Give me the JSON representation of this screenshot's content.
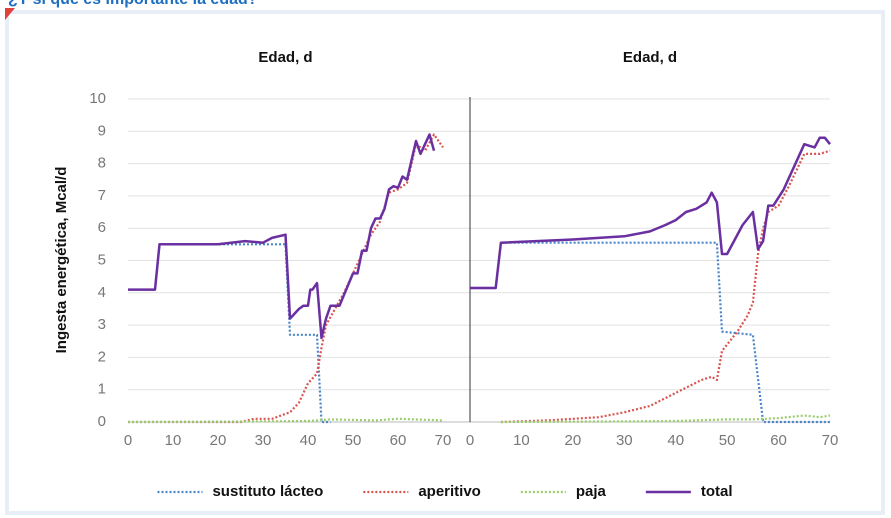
{
  "title": "¿Y si que es importante la edad?",
  "chart_data": [
    {
      "type": "line",
      "title": "Edad, d",
      "y_label": "Ingesta energética, Mcal/d",
      "xlim": [
        0,
        70
      ],
      "xticks": [
        0,
        10,
        20,
        30,
        40,
        50,
        60,
        70
      ],
      "ylim": [
        0,
        10
      ],
      "yticks": [
        0,
        1,
        2,
        3,
        4,
        5,
        6,
        7,
        8,
        9,
        10
      ],
      "grid": true,
      "legend": "bottom",
      "series": [
        {
          "name": "sustituto lácteo",
          "color": "#4a86c8",
          "style": "dotted",
          "x": [
            0,
            6,
            7,
            35,
            36,
            42,
            43,
            45
          ],
          "values": [
            4.1,
            4.1,
            5.5,
            5.5,
            2.7,
            2.7,
            0,
            0
          ]
        },
        {
          "name": "aperitivo",
          "color": "#d9534f",
          "style": "dotted",
          "x": [
            0,
            25,
            28,
            32,
            34,
            36,
            38,
            40,
            42,
            43,
            44,
            46,
            48,
            50,
            52,
            54,
            56,
            58,
            60,
            62,
            64,
            66,
            68,
            70
          ],
          "values": [
            0,
            0,
            0.1,
            0.1,
            0.2,
            0.3,
            0.6,
            1.2,
            1.5,
            2.3,
            3.0,
            3.5,
            4.0,
            4.6,
            5.2,
            5.8,
            6.2,
            7.1,
            7.2,
            7.4,
            8.6,
            8.4,
            8.9,
            8.5
          ]
        },
        {
          "name": "paja",
          "color": "#9acd6a",
          "style": "dotted",
          "x": [
            0,
            30,
            40,
            45,
            55,
            60,
            70
          ],
          "values": [
            0,
            0.02,
            0.03,
            0.08,
            0.05,
            0.1,
            0.05
          ]
        },
        {
          "name": "total",
          "color": "#6a2fa0",
          "style": "solid",
          "x": [
            0,
            6,
            7,
            20,
            26,
            30,
            32,
            35,
            36,
            38,
            39,
            40,
            40.5,
            41,
            42,
            43,
            44,
            45,
            47,
            50,
            51,
            52,
            53,
            54,
            55,
            56,
            57,
            58,
            59,
            60,
            61,
            62,
            63,
            64,
            65,
            66,
            67,
            68
          ],
          "values": [
            4.1,
            4.1,
            5.5,
            5.5,
            5.6,
            5.55,
            5.7,
            5.8,
            3.2,
            3.5,
            3.6,
            3.6,
            4.1,
            4.1,
            4.3,
            2.6,
            3.2,
            3.6,
            3.6,
            4.6,
            4.6,
            5.3,
            5.3,
            6.0,
            6.3,
            6.3,
            6.6,
            7.2,
            7.3,
            7.25,
            7.6,
            7.5,
            8.1,
            8.7,
            8.3,
            8.6,
            8.9,
            8.4
          ]
        }
      ]
    },
    {
      "type": "line",
      "title": "Edad, d",
      "xlim": [
        0,
        70
      ],
      "xticks": [
        0,
        10,
        20,
        30,
        40,
        50,
        60,
        70
      ],
      "ylim": [
        0,
        10
      ],
      "series": [
        {
          "color": "#4a86c8",
          "style": "dotted",
          "x": [
            0,
            5,
            6,
            48,
            49,
            55,
            57,
            70
          ],
          "values": [
            4.15,
            4.15,
            5.55,
            5.55,
            2.8,
            2.7,
            0,
            0
          ]
        },
        {
          "color": "#d9534f",
          "style": "dotted",
          "x": [
            6,
            15,
            20,
            25,
            30,
            35,
            40,
            45,
            47,
            48,
            49,
            52,
            54,
            55,
            56,
            57,
            58,
            60,
            62,
            65,
            68,
            70
          ],
          "values": [
            0,
            0.05,
            0.1,
            0.15,
            0.3,
            0.5,
            0.9,
            1.3,
            1.4,
            1.3,
            2.2,
            2.8,
            3.3,
            3.7,
            5.2,
            6.0,
            6.5,
            6.7,
            7.3,
            8.3,
            8.3,
            8.4
          ]
        },
        {
          "color": "#9acd6a",
          "style": "dotted",
          "x": [
            6,
            30,
            40,
            50,
            55,
            60,
            65,
            68,
            70
          ],
          "values": [
            0,
            0.02,
            0.03,
            0.08,
            0.08,
            0.12,
            0.2,
            0.15,
            0.2
          ]
        },
        {
          "color": "#6a2fa0",
          "style": "solid",
          "x": [
            0,
            5,
            6,
            20,
            30,
            35,
            38,
            40,
            42,
            44,
            46,
            47,
            48,
            49,
            50,
            53,
            55,
            56,
            57,
            58,
            59,
            61,
            63,
            65,
            67,
            68,
            69,
            70
          ],
          "values": [
            4.15,
            4.15,
            5.55,
            5.65,
            5.75,
            5.9,
            6.1,
            6.25,
            6.5,
            6.6,
            6.8,
            7.1,
            6.8,
            5.2,
            5.2,
            6.1,
            6.5,
            5.35,
            5.6,
            6.7,
            6.7,
            7.2,
            7.9,
            8.6,
            8.5,
            8.8,
            8.8,
            8.6
          ]
        }
      ]
    }
  ]
}
